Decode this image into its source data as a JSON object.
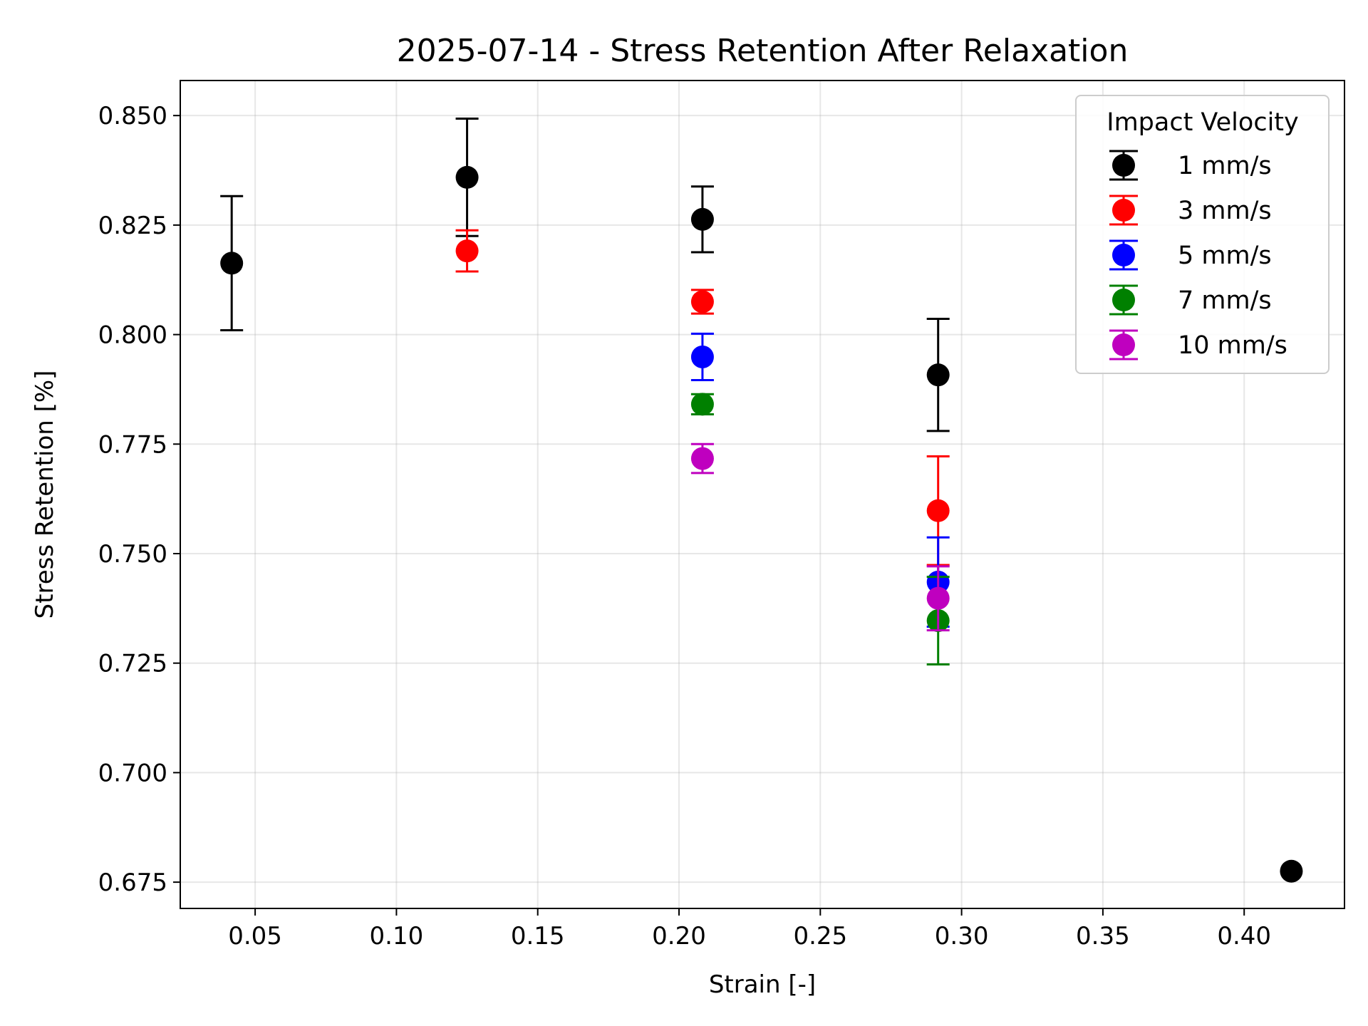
{
  "chart_data": {
    "type": "scatter",
    "title": "2025-07-14 - Stress Retention After Relaxation",
    "xlabel": "Strain [-]",
    "ylabel": "Stress Retention [%]",
    "xlim": [
      0.0235,
      0.4355
    ],
    "ylim": [
      0.669,
      0.858
    ],
    "xticks": [
      0.05,
      0.1,
      0.15,
      0.2,
      0.25,
      0.3,
      0.35,
      0.4
    ],
    "xtick_labels": [
      "0.05",
      "0.10",
      "0.15",
      "0.20",
      "0.25",
      "0.30",
      "0.35",
      "0.40"
    ],
    "yticks": [
      0.675,
      0.7,
      0.725,
      0.75,
      0.775,
      0.8,
      0.825,
      0.85
    ],
    "ytick_labels": [
      "0.675",
      "0.700",
      "0.725",
      "0.750",
      "0.775",
      "0.800",
      "0.825",
      "0.850"
    ],
    "grid": true,
    "legend_title": "Impact Velocity",
    "legend_position": "top-right",
    "series": [
      {
        "name": "1 mm/s",
        "color": "#000000",
        "points": [
          {
            "x": 0.0417,
            "y": 0.8163,
            "err": 0.0153
          },
          {
            "x": 0.125,
            "y": 0.8359,
            "err": 0.0134
          },
          {
            "x": 0.2083,
            "y": 0.8263,
            "err": 0.0075
          },
          {
            "x": 0.2917,
            "y": 0.7908,
            "err": 0.0128
          },
          {
            "x": 0.4167,
            "y": 0.6775,
            "err": 0
          }
        ]
      },
      {
        "name": "3 mm/s",
        "color": "#ff0000",
        "points": [
          {
            "x": 0.125,
            "y": 0.8191,
            "err": 0.0047
          },
          {
            "x": 0.2083,
            "y": 0.8075,
            "err": 0.0027
          },
          {
            "x": 0.2917,
            "y": 0.7598,
            "err": 0.0124
          }
        ]
      },
      {
        "name": "5 mm/s",
        "color": "#0000ff",
        "points": [
          {
            "x": 0.2083,
            "y": 0.7949,
            "err": 0.0053
          },
          {
            "x": 0.2917,
            "y": 0.7435,
            "err": 0.0102
          }
        ]
      },
      {
        "name": "7 mm/s",
        "color": "#008000",
        "points": [
          {
            "x": 0.2083,
            "y": 0.7841,
            "err": 0.0023
          },
          {
            "x": 0.2917,
            "y": 0.7347,
            "err": 0.01
          }
        ]
      },
      {
        "name": "10 mm/s",
        "color": "#bf00bf",
        "points": [
          {
            "x": 0.2083,
            "y": 0.7717,
            "err": 0.0033
          },
          {
            "x": 0.2917,
            "y": 0.7398,
            "err": 0.0073
          }
        ]
      }
    ]
  }
}
